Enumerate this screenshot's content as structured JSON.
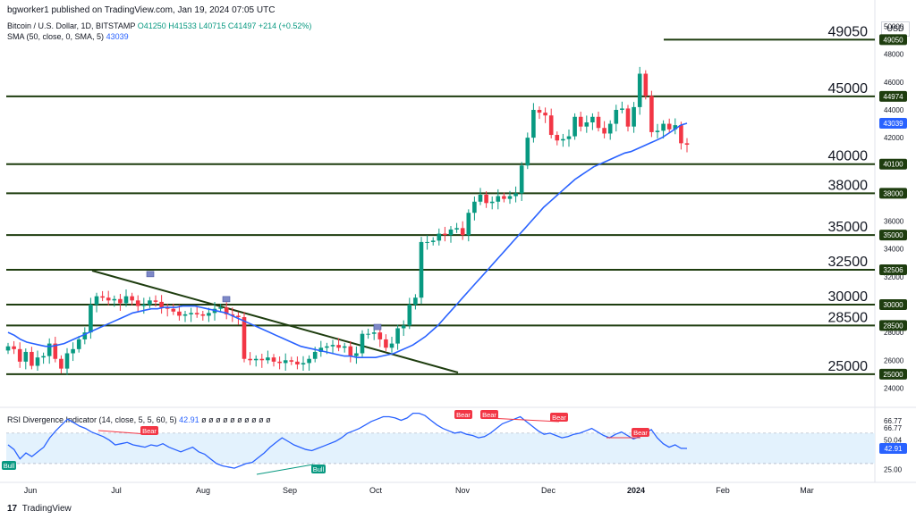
{
  "header": "bgworker1 published on TradingView.com, Jan 19, 2024 07:05 UTC",
  "legend": {
    "symbol": "Bitcoin / U.S. Dollar, 1D, BITSTAMP",
    "ohlc": "O41250 H41533 L40715 C41497 +214 (+0.52%)",
    "sma_label": "SMA (50, close, 0, SMA, 5)",
    "sma_value": "43039",
    "rsi_label": "RSI Divergence Indicator (14, close, 5, 5, 60, 5)",
    "rsi_value": "42.91",
    "rsi_extra": "ø ø ø ø ø ø ø ø ø ø"
  },
  "currency": "USD",
  "footer": {
    "logo": "17",
    "text": "TradingView"
  },
  "colors": {
    "level": "#1e3d0f",
    "sma": "#2962ff",
    "up": "#089981",
    "down": "#f23645",
    "rsi_band": "#e3f2fd"
  },
  "chart_data": [
    {
      "type": "candlestick",
      "x_ticks": [
        "Jun",
        "Jul",
        "Aug",
        "Sep",
        "Oct",
        "Nov",
        "Dec",
        "2024",
        "Feb",
        "Mar"
      ],
      "y_ticks": [
        "50000",
        "48000",
        "46000",
        "44000",
        "42000",
        "40000",
        "38000",
        "36000",
        "34000",
        "32000",
        "30000",
        "28000",
        "26000",
        "24000"
      ],
      "ylim": [
        23000,
        51000
      ],
      "levels": [
        "49050",
        "45000",
        "40000",
        "38000",
        "35000",
        "32500",
        "30000",
        "28500",
        "25000"
      ],
      "level_axis_labels": [
        "49050",
        "44974",
        "40100",
        "38000",
        "35000",
        "32506",
        "30000",
        "28500",
        "25000"
      ],
      "current_price": "43039",
      "close_series": [
        27000,
        26800,
        25900,
        26600,
        25600,
        26200,
        26300,
        27200,
        26100,
        25400,
        26500,
        26800,
        27500,
        28000,
        30000,
        30600,
        30500,
        30300,
        30400,
        30100,
        30600,
        30300,
        29900,
        30000,
        30300,
        30200,
        29800,
        29700,
        29500,
        29200,
        29300,
        29400,
        29300,
        29200,
        29400,
        29700,
        29800,
        29300,
        29200,
        29100,
        26100,
        26000,
        26100,
        26000,
        26200,
        25900,
        25800,
        26000,
        25900,
        25700,
        25800,
        26100,
        26600,
        26900,
        27000,
        27100,
        26900,
        27000,
        26300,
        26500,
        27900,
        27900,
        28000,
        27500,
        26900,
        27200,
        28300,
        28500,
        30000,
        30500,
        34500,
        34500,
        34600,
        35100,
        35000,
        35400,
        35500,
        35000,
        36600,
        37400,
        37900,
        37300,
        37400,
        37800,
        37600,
        37800,
        38000,
        40000,
        42000,
        44000,
        43800,
        43600,
        42200,
        41800,
        41900,
        42100,
        43500,
        42800,
        43100,
        43500,
        42700,
        42300,
        43000,
        44000,
        44100,
        42800,
        44200,
        46600,
        45000,
        42400,
        42500,
        43000,
        42600,
        42900,
        41600,
        41497
      ],
      "sma_series": [
        28000,
        27800,
        27500,
        27300,
        27200,
        27100,
        27000,
        27000,
        27100,
        27200,
        27400,
        27600,
        27800,
        28000,
        28200,
        28400,
        28600,
        28800,
        29000,
        29200,
        29400,
        29500,
        29600,
        29700,
        29700,
        29800,
        29800,
        29800,
        29900,
        29900,
        29900,
        29800,
        29700,
        29600,
        29500,
        29400,
        29200,
        29000,
        28800,
        28600,
        28400,
        28200,
        28000,
        27800,
        27600,
        27400,
        27200,
        27000,
        26900,
        26800,
        26700,
        26600,
        26500,
        26400,
        26300,
        26300,
        26200,
        26200,
        26200,
        26200,
        26300,
        26400,
        26500,
        26700,
        26900,
        27100,
        27400,
        27700,
        28100,
        28500,
        29000,
        29500,
        30000,
        30500,
        31000,
        31500,
        32000,
        32500,
        33000,
        33500,
        34000,
        34500,
        35000,
        35500,
        36000,
        36500,
        37000,
        37400,
        37800,
        38200,
        38600,
        39000,
        39300,
        39600,
        39900,
        40100,
        40300,
        40500,
        40700,
        40900,
        41000,
        41200,
        41400,
        41600,
        41800,
        42000,
        42300,
        42600,
        42900,
        43039
      ]
    },
    {
      "type": "line",
      "title": "RSI Divergence Indicator (14, close, 5, 5, 60, 5)",
      "y_ticks": [
        "66.77",
        "66.77",
        "50.04",
        "50.04",
        "42.91",
        "25.00"
      ],
      "ylim": [
        20,
        75
      ],
      "band": [
        30,
        56
      ],
      "labels": [
        "Bull",
        "Bear",
        "Bull",
        "Bear",
        "Bear",
        "Bear",
        "Bear"
      ],
      "rsi_series": [
        46,
        42,
        34,
        39,
        36,
        40,
        44,
        52,
        58,
        63,
        68,
        65,
        62,
        60,
        57,
        55,
        53,
        50,
        46,
        47,
        48,
        46,
        45,
        44,
        46,
        45,
        47,
        44,
        42,
        40,
        42,
        44,
        40,
        38,
        34,
        30,
        28,
        27,
        26,
        28,
        30,
        31,
        35,
        39,
        44,
        48,
        52,
        49,
        46,
        44,
        42,
        41,
        43,
        45,
        47,
        49,
        52,
        56,
        58,
        60,
        63,
        66,
        68,
        70,
        70,
        69,
        67,
        69,
        73,
        73,
        71,
        67,
        63,
        60,
        58,
        56,
        57,
        55,
        54,
        52,
        53,
        56,
        60,
        64,
        66,
        68,
        70,
        66,
        62,
        58,
        55,
        56,
        54,
        52,
        53,
        55,
        56,
        58,
        60,
        57,
        54,
        52,
        55,
        57,
        54,
        51,
        53,
        56,
        59,
        52,
        47,
        44,
        46,
        43,
        42.91
      ]
    }
  ]
}
